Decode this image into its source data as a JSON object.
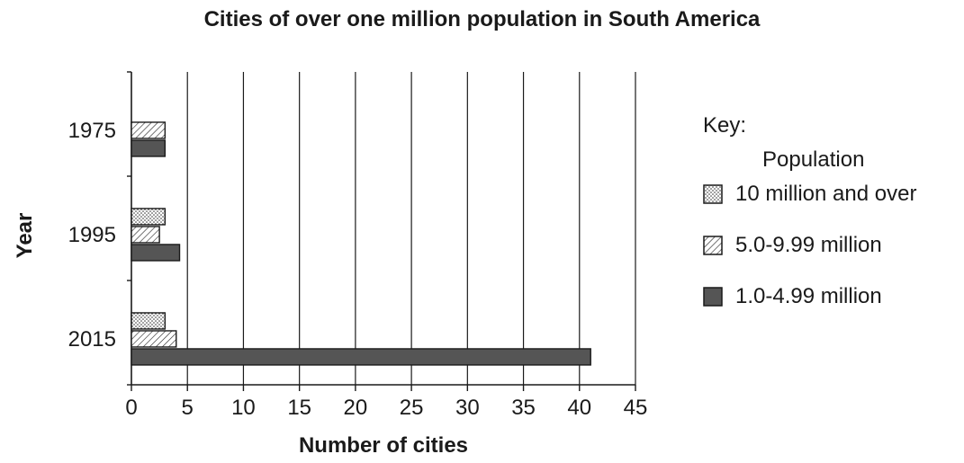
{
  "chart_data": {
    "type": "bar",
    "orientation": "horizontal",
    "title": "Cities of over one million population in South America",
    "xlabel": "Number of cities",
    "ylabel": "Year",
    "xlim": [
      0,
      45
    ],
    "xticks": [
      0,
      5,
      10,
      15,
      20,
      25,
      30,
      35,
      40,
      45
    ],
    "categories": [
      "1975",
      "1995",
      "2015"
    ],
    "series": [
      {
        "name": "10 million and over",
        "values": [
          0,
          3,
          3
        ],
        "pattern": "dotted"
      },
      {
        "name": "5.0-9.99 million",
        "values": [
          3,
          2.5,
          4
        ],
        "pattern": "hatched"
      },
      {
        "name": "1.0-4.99 million",
        "values": [
          3,
          4.3,
          41
        ],
        "pattern": "solid"
      }
    ],
    "legend": {
      "title": "Key:",
      "subtitle": "Population",
      "position": "right"
    },
    "grid": {
      "vertical": true,
      "horizontal": false
    },
    "colors": {
      "solid": "#555555",
      "stroke": "#1a1a1a"
    }
  }
}
